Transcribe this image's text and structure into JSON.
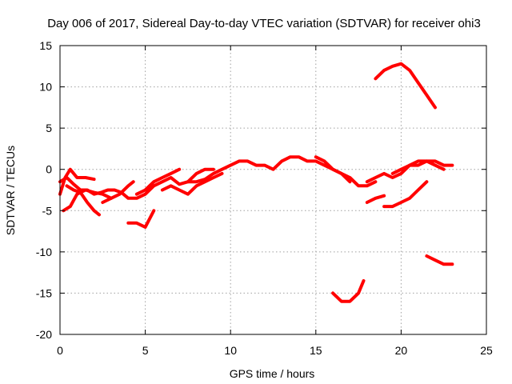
{
  "chart_data": {
    "type": "line",
    "title": "Day 006 of 2017, Sidereal Day-to-day VTEC variation (SDTVAR) for receiver ohi3",
    "xlabel": "GPS time / hours",
    "ylabel": "SDTVAR / TECUs",
    "xlim": [
      0,
      25
    ],
    "ylim": [
      -20,
      15
    ],
    "xticks": [
      0,
      5,
      10,
      15,
      20,
      25
    ],
    "yticks": [
      -20,
      -15,
      -10,
      -5,
      0,
      5,
      10,
      15
    ],
    "grid": true,
    "line_color": "#ff0000",
    "series": [
      {
        "name": "s1",
        "x": [
          0.0,
          0.4,
          0.8,
          1.2,
          1.6,
          2.0,
          2.4,
          2.8,
          3.2,
          3.6,
          4.0,
          4.5,
          5.0,
          5.5,
          6.0,
          6.5,
          7.0,
          7.5,
          8.0,
          8.5,
          9.0,
          9.5,
          10.0,
          10.5,
          11.0,
          11.5,
          12.0,
          12.5,
          13.0,
          13.5,
          14.0,
          14.5,
          15.0,
          15.5,
          16.0,
          16.5,
          17.0,
          17.5,
          18.0,
          18.5
        ],
        "y": [
          -1.5,
          -1.0,
          -1.8,
          -2.5,
          -2.5,
          -3.0,
          -2.8,
          -2.5,
          -2.5,
          -2.8,
          -3.5,
          -3.5,
          -3.0,
          -2.0,
          -1.5,
          -1.0,
          -1.8,
          -1.5,
          -1.5,
          -1.2,
          -0.5,
          0.0,
          0.5,
          1.0,
          1.0,
          0.5,
          0.5,
          0.0,
          1.0,
          1.5,
          1.5,
          1.0,
          1.0,
          0.5,
          0.0,
          -0.5,
          -1.0,
          -2.0,
          -2.0,
          -1.5
        ]
      },
      {
        "name": "s2",
        "x": [
          0.0,
          0.3,
          0.6,
          1.0,
          1.5,
          2.0
        ],
        "y": [
          -3.0,
          -1.0,
          0.0,
          -1.0,
          -1.0,
          -1.2
        ]
      },
      {
        "name": "s3",
        "x": [
          0.2,
          0.6,
          1.0,
          1.5,
          2.0,
          2.5,
          3.0
        ],
        "y": [
          -5.0,
          -4.5,
          -3.0,
          -2.5,
          -2.8,
          -3.0,
          -3.5
        ]
      },
      {
        "name": "s4",
        "x": [
          0.4,
          0.8,
          1.2,
          1.6,
          2.0,
          2.3
        ],
        "y": [
          -2.0,
          -2.5,
          -2.8,
          -4.0,
          -5.0,
          -5.5
        ]
      },
      {
        "name": "s5",
        "x": [
          2.5,
          3.0,
          3.5,
          4.0,
          4.3
        ],
        "y": [
          -4.0,
          -3.5,
          -3.0,
          -2.0,
          -1.5
        ]
      },
      {
        "name": "s6",
        "x": [
          4.0,
          4.5,
          5.0,
          5.5
        ],
        "y": [
          -6.5,
          -6.5,
          -7.0,
          -5.0
        ]
      },
      {
        "name": "s7",
        "x": [
          4.5,
          5.0,
          5.5,
          6.0,
          6.5,
          7.0
        ],
        "y": [
          -3.0,
          -2.5,
          -1.5,
          -1.0,
          -0.5,
          0.0
        ]
      },
      {
        "name": "s8",
        "x": [
          6.0,
          6.5,
          7.0,
          7.5,
          8.0,
          8.5,
          9.0,
          9.5
        ],
        "y": [
          -2.5,
          -2.0,
          -2.5,
          -3.0,
          -2.0,
          -1.5,
          -1.0,
          -0.5
        ]
      },
      {
        "name": "s9",
        "x": [
          7.5,
          8.0,
          8.5,
          9.0
        ],
        "y": [
          -1.5,
          -0.5,
          0.0,
          0.0
        ]
      },
      {
        "name": "s10",
        "x": [
          15.0,
          15.5,
          16.0,
          16.5,
          17.0
        ],
        "y": [
          1.5,
          1.0,
          0.0,
          -0.5,
          -1.5
        ]
      },
      {
        "name": "s11",
        "x": [
          16.0,
          16.5,
          17.0,
          17.5,
          17.8
        ],
        "y": [
          -15.0,
          -16.0,
          -16.0,
          -15.0,
          -13.5
        ]
      },
      {
        "name": "s12",
        "x": [
          18.0,
          18.5,
          19.0
        ],
        "y": [
          -4.0,
          -3.5,
          -3.2
        ]
      },
      {
        "name": "s13",
        "x": [
          18.0,
          18.5,
          19.0,
          19.5,
          20.0,
          20.5,
          21.0,
          21.5,
          22.0,
          22.5,
          23.0
        ],
        "y": [
          -1.5,
          -1.0,
          -0.5,
          -1.0,
          -0.5,
          0.5,
          1.0,
          1.0,
          1.0,
          0.5,
          0.5
        ]
      },
      {
        "name": "s14",
        "x": [
          19.0,
          19.5,
          20.0,
          20.5,
          21.0,
          21.5
        ],
        "y": [
          -4.5,
          -4.5,
          -4.0,
          -3.5,
          -2.5,
          -1.5
        ]
      },
      {
        "name": "s15",
        "x": [
          19.5,
          20.0,
          20.5,
          21.0,
          21.5,
          22.0,
          22.5
        ],
        "y": [
          -0.5,
          0.0,
          0.5,
          0.5,
          1.0,
          0.5,
          0.0
        ]
      },
      {
        "name": "s16",
        "x": [
          18.5,
          19.0,
          19.5,
          20.0,
          20.5,
          21.0,
          21.5,
          22.0
        ],
        "y": [
          11.0,
          12.0,
          12.5,
          12.8,
          12.0,
          10.5,
          9.0,
          7.5
        ]
      },
      {
        "name": "s17",
        "x": [
          21.5,
          22.0,
          22.5,
          23.0
        ],
        "y": [
          -10.5,
          -11.0,
          -11.5,
          -11.5
        ]
      }
    ]
  }
}
